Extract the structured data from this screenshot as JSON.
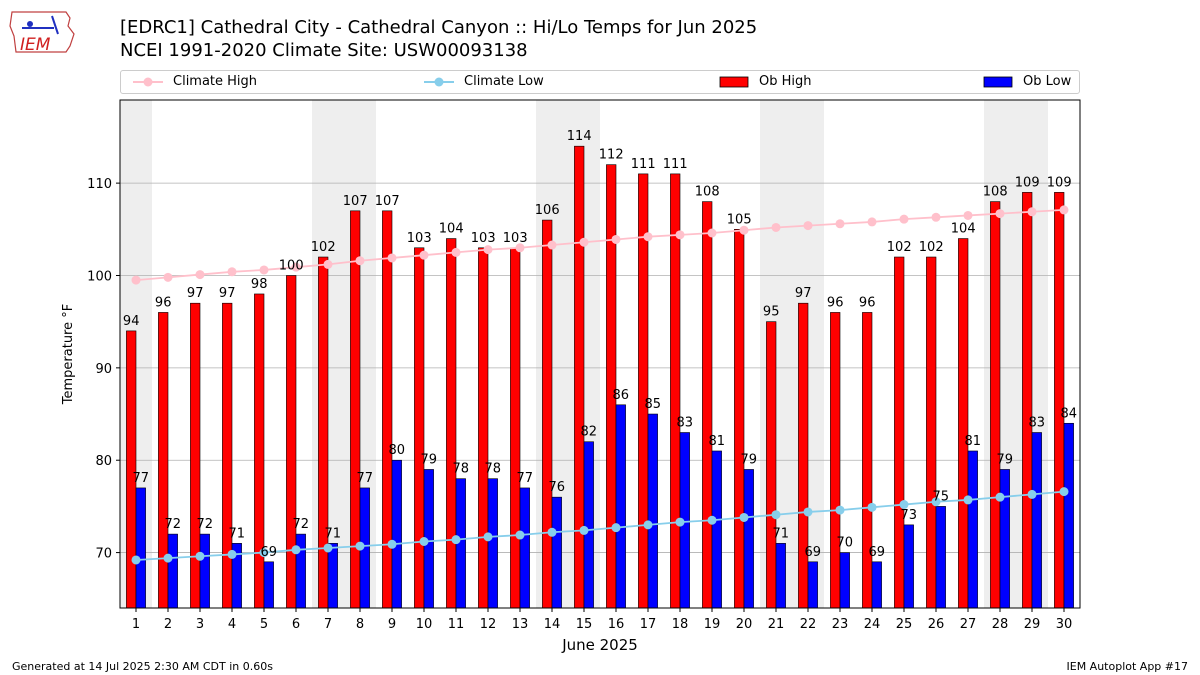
{
  "header": {
    "title_line1": "[EDRC1] Cathedral City - Cathedral Canyon :: Hi/Lo Temps for Jun 2025",
    "title_line2": "NCEI 1991-2020 Climate Site: USW00093138",
    "logo_text": "IEM"
  },
  "footer": {
    "generated": "Generated at 14 Jul 2025 2:30 AM CDT in 0.60s",
    "app": "IEM Autoplot App #17"
  },
  "colors": {
    "ob_high": "#ff0000",
    "ob_low": "#0000ff",
    "climate_high": "#ffc0cb",
    "climate_low": "#87ceeb",
    "weekend_band": "#eeeeee",
    "grid": "#b0b0b0"
  },
  "chart_data": {
    "type": "bar",
    "xlabel": "June 2025",
    "ylabel": "Temperature °F",
    "ylim": [
      64,
      119
    ],
    "yticks": [
      70,
      80,
      90,
      100,
      110
    ],
    "grid": true,
    "legend_position": "top",
    "categories": [
      "1",
      "2",
      "3",
      "4",
      "5",
      "6",
      "7",
      "8",
      "9",
      "10",
      "11",
      "12",
      "13",
      "14",
      "15",
      "16",
      "17",
      "18",
      "19",
      "20",
      "21",
      "22",
      "23",
      "24",
      "25",
      "26",
      "27",
      "28",
      "29",
      "30"
    ],
    "weekend_days": [
      1,
      7,
      8,
      14,
      15,
      21,
      22,
      28,
      29
    ],
    "series": [
      {
        "name": "Climate High",
        "kind": "line",
        "values": [
          99.5,
          99.8,
          100.1,
          100.4,
          100.6,
          100.9,
          101.2,
          101.6,
          101.9,
          102.2,
          102.5,
          102.8,
          103.0,
          103.3,
          103.6,
          103.9,
          104.2,
          104.4,
          104.6,
          104.9,
          105.2,
          105.4,
          105.6,
          105.8,
          106.1,
          106.3,
          106.5,
          106.7,
          106.9,
          107.1
        ]
      },
      {
        "name": "Climate Low",
        "kind": "line",
        "values": [
          69.2,
          69.4,
          69.6,
          69.8,
          70.0,
          70.3,
          70.5,
          70.7,
          70.9,
          71.2,
          71.4,
          71.7,
          71.9,
          72.2,
          72.4,
          72.7,
          73.0,
          73.3,
          73.5,
          73.8,
          74.1,
          74.4,
          74.6,
          74.9,
          75.2,
          75.5,
          75.7,
          76.0,
          76.3,
          76.6
        ]
      },
      {
        "name": "Ob High",
        "kind": "bar",
        "values": [
          94,
          96,
          97,
          97,
          98,
          100,
          102,
          107,
          107,
          103,
          104,
          103,
          103,
          106,
          114,
          112,
          111,
          111,
          108,
          105,
          95,
          97,
          96,
          96,
          102,
          102,
          104,
          108,
          109,
          109
        ]
      },
      {
        "name": "Ob Low",
        "kind": "bar",
        "values": [
          77,
          72,
          72,
          71,
          69,
          72,
          71,
          77,
          80,
          79,
          78,
          78,
          77,
          76,
          82,
          86,
          85,
          83,
          81,
          79,
          71,
          69,
          70,
          69,
          73,
          75,
          81,
          79,
          83,
          84
        ]
      }
    ]
  }
}
